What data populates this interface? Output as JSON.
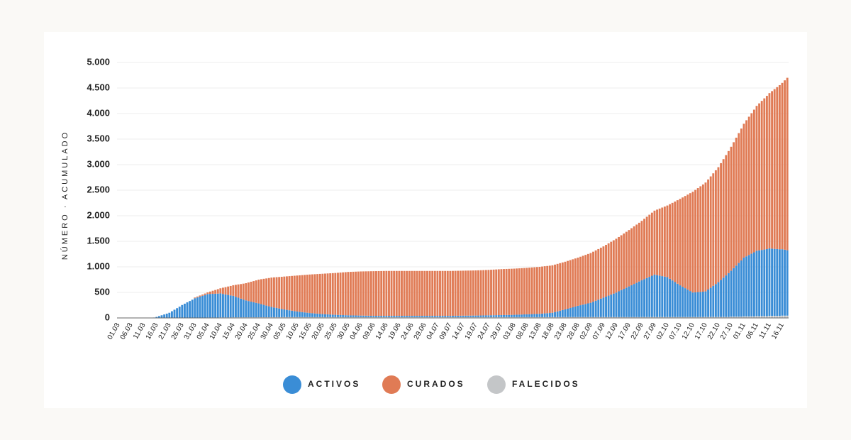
{
  "chart_data": {
    "type": "stacked-bar",
    "y_label": "NÚMERO · ACUMULADO",
    "ylim": [
      0,
      5000
    ],
    "yticks": [
      0,
      500,
      {
        "value": 1000,
        "label": "1.000"
      },
      {
        "value": 1500,
        "label": "1.500"
      },
      {
        "value": 2000,
        "label": "2.000"
      },
      {
        "value": 2500,
        "label": "2.500"
      },
      {
        "value": 3000,
        "label": "3.000"
      },
      {
        "value": 3500,
        "label": "3.500"
      },
      {
        "value": 4000,
        "label": "4.000"
      },
      {
        "value": 4500,
        "label": "4.500"
      },
      {
        "value": 5000,
        "label": "5.000"
      }
    ],
    "grid": true,
    "legend": "bottom",
    "categories": [
      "01.03",
      null,
      null,
      null,
      null,
      "06.03",
      null,
      null,
      null,
      null,
      "11.03",
      null,
      null,
      null,
      null,
      "16.03",
      null,
      null,
      null,
      null,
      "21.03",
      null,
      null,
      null,
      null,
      "26.03",
      null,
      null,
      null,
      null,
      "31.03",
      null,
      null,
      null,
      null,
      "05.04",
      null,
      null,
      null,
      null,
      "10.04",
      null,
      null,
      null,
      null,
      "15.04",
      null,
      null,
      null,
      null,
      "20.04",
      null,
      null,
      null,
      null,
      "25.04",
      null,
      null,
      null,
      null,
      "30.04",
      null,
      null,
      null,
      null,
      "05.05",
      null,
      null,
      null,
      null,
      "10.05",
      null,
      null,
      null,
      null,
      "15.05",
      null,
      null,
      null,
      null,
      "20.05",
      null,
      null,
      null,
      null,
      "25.05",
      null,
      null,
      null,
      null,
      "30.05",
      null,
      null,
      null,
      null,
      "04.06",
      null,
      null,
      null,
      null,
      "09.06",
      null,
      null,
      null,
      null,
      "14.06",
      null,
      null,
      null,
      null,
      "19.06",
      null,
      null,
      null,
      null,
      "24.06",
      null,
      null,
      null,
      null,
      "29.06",
      null,
      null,
      null,
      null,
      "04.07",
      null,
      null,
      null,
      null,
      "09.07",
      null,
      null,
      null,
      null,
      "14.07",
      null,
      null,
      null,
      null,
      "19.07",
      null,
      null,
      null,
      null,
      "24.07",
      null,
      null,
      null,
      null,
      "29.07",
      null,
      null,
      null,
      null,
      "03.08",
      null,
      null,
      null,
      null,
      "08.08",
      null,
      null,
      null,
      null,
      "13.08",
      null,
      null,
      null,
      null,
      "18.08",
      null,
      null,
      null,
      null,
      "23.08",
      null,
      null,
      null,
      null,
      "28.08",
      null,
      null,
      null,
      null,
      "02.09",
      null,
      null,
      null,
      null,
      "07.09",
      null,
      null,
      null,
      null,
      "12.09",
      null,
      null,
      null,
      null,
      "17.09",
      null,
      null,
      null,
      null,
      "22.09",
      null,
      null,
      null,
      null,
      "27.09",
      null,
      null,
      null,
      null,
      "02.10",
      null,
      null,
      null,
      null,
      "07.10",
      null,
      null,
      null,
      null,
      "12.10",
      null,
      null,
      null,
      null,
      "17.10",
      null,
      null,
      null,
      null,
      "22.10",
      null,
      null,
      null,
      null,
      "27.10",
      null,
      null,
      null,
      null,
      "01.11",
      null,
      null,
      null,
      null,
      "06.11",
      null,
      null,
      null,
      null,
      "11.11",
      null,
      null,
      null,
      null,
      "16.11",
      null,
      null
    ],
    "series": [
      {
        "name": "ACTIVOS",
        "color": "#3a8dd6",
        "values": [
          0,
          0,
          0,
          0,
          0,
          0,
          0,
          0,
          0,
          0,
          1,
          2,
          3,
          5,
          8,
          20,
          36,
          52,
          68,
          84,
          100,
          130,
          160,
          190,
          220,
          250,
          276,
          302,
          328,
          354,
          380,
          396,
          412,
          428,
          444,
          460,
          462,
          464,
          466,
          468,
          470,
          460,
          450,
          440,
          430,
          420,
          402,
          384,
          366,
          348,
          330,
          318,
          306,
          294,
          282,
          270,
          256,
          242,
          228,
          214,
          200,
          190,
          180,
          170,
          160,
          150,
          142,
          134,
          126,
          118,
          110,
          104,
          98,
          92,
          86,
          80,
          76,
          72,
          68,
          64,
          60,
          57,
          54,
          51,
          48,
          45,
          43,
          41,
          39,
          37,
          35,
          34,
          33,
          32,
          31,
          30,
          29,
          28,
          27,
          26,
          25,
          25,
          25,
          25,
          25,
          25,
          25,
          25,
          25,
          25,
          25,
          25,
          25,
          25,
          25,
          25,
          25,
          25,
          25,
          25,
          25,
          25,
          25,
          25,
          25,
          25,
          25,
          25,
          25,
          25,
          25,
          26,
          26,
          27,
          27,
          28,
          28,
          29,
          29,
          30,
          30,
          31,
          32,
          33,
          34,
          35,
          36,
          37,
          38,
          39,
          40,
          41,
          42,
          43,
          44,
          45,
          47,
          49,
          51,
          53,
          55,
          57,
          59,
          61,
          63,
          65,
          69,
          73,
          77,
          81,
          85,
          98,
          111,
          124,
          137,
          150,
          164,
          178,
          192,
          206,
          220,
          232,
          244,
          256,
          268,
          280,
          300,
          320,
          340,
          360,
          380,
          400,
          420,
          440,
          460,
          480,
          504,
          528,
          552,
          576,
          600,
          624,
          648,
          672,
          696,
          720,
          742,
          764,
          786,
          808,
          830,
          820,
          810,
          800,
          790,
          780,
          748,
          716,
          684,
          652,
          620,
          592,
          564,
          536,
          508,
          480,
          484,
          488,
          492,
          496,
          500,
          536,
          572,
          608,
          644,
          680,
          724,
          768,
          812,
          856,
          900,
          950,
          1000,
          1050,
          1100,
          1150,
          1176,
          1202,
          1228,
          1254,
          1280,
          1288,
          1296,
          1304,
          1312,
          1320,
          1316,
          1312,
          1308,
          1304,
          1300,
          1290,
          1280
        ]
      },
      {
        "name": "CURADOS",
        "color": "#e07b55",
        "values": [
          0,
          0,
          0,
          0,
          0,
          0,
          0,
          0,
          0,
          0,
          0,
          0,
          0,
          0,
          0,
          0,
          0,
          0,
          0,
          0,
          0,
          0,
          0,
          0,
          0,
          0,
          0,
          0,
          0,
          0,
          15,
          18,
          22,
          25,
          29,
          32,
          46,
          60,
          73,
          87,
          100,
          122,
          143,
          165,
          186,
          208,
          234,
          260,
          285,
          311,
          337,
          363,
          389,
          414,
          440,
          466,
          488,
          510,
          531,
          553,
          575,
          589,
          603,
          616,
          630,
          644,
          656,
          668,
          680,
          692,
          704,
          714,
          724,
          734,
          744,
          754,
          761,
          768,
          775,
          782,
          789,
          795,
          801,
          807,
          813,
          819,
          825,
          831,
          837,
          843,
          849,
          852,
          855,
          858,
          861,
          864,
          866,
          868,
          870,
          872,
          874,
          875,
          876,
          877,
          878,
          879,
          879,
          879,
          879,
          879,
          879,
          879,
          879,
          879,
          879,
          879,
          879,
          879,
          879,
          879,
          879,
          879,
          879,
          879,
          879,
          879,
          879,
          879,
          879,
          879,
          879,
          879,
          880,
          880,
          881,
          881,
          882,
          882,
          883,
          883,
          884,
          885,
          886,
          887,
          888,
          889,
          891,
          893,
          895,
          897,
          899,
          900,
          901,
          902,
          903,
          904,
          905,
          906,
          907,
          908,
          909,
          911,
          913,
          915,
          917,
          919,
          921,
          923,
          924,
          926,
          928,
          929,
          930,
          931,
          932,
          933,
          935,
          937,
          939,
          941,
          943,
          949,
          955,
          961,
          967,
          973,
          979,
          985,
          991,
          997,
          1003,
          1013,
          1023,
          1033,
          1043,
          1053,
          1063,
          1073,
          1083,
          1093,
          1103,
          1115,
          1127,
          1138,
          1150,
          1162,
          1180,
          1198,
          1216,
          1234,
          1252,
          1282,
          1312,
          1342,
          1372,
          1402,
          1460,
          1518,
          1576,
          1634,
          1692,
          1748,
          1804,
          1860,
          1916,
          1972,
          2004,
          2035,
          2067,
          2098,
          2130,
          2154,
          2178,
          2202,
          2226,
          2250,
          2285,
          2320,
          2355,
          2390,
          2425,
          2464,
          2503,
          2542,
          2581,
          2620,
          2663,
          2706,
          2749,
          2792,
          2835,
          2876,
          2917,
          2958,
          2999,
          3040,
          3083,
          3126,
          3169,
          3212,
          3255,
          3315,
          3375
        ]
      },
      {
        "name": "FALECIDOS",
        "color": "#c4c6c8",
        "values": [
          0,
          0,
          0,
          0,
          0,
          0,
          0,
          0,
          0,
          0,
          0,
          0,
          0,
          0,
          0,
          0,
          0,
          0,
          0,
          0,
          1,
          1,
          1,
          1,
          1,
          3,
          3,
          3,
          3,
          3,
          5,
          5,
          5,
          5,
          5,
          8,
          8,
          8,
          8,
          8,
          10,
          10,
          10,
          10,
          10,
          12,
          12,
          12,
          12,
          12,
          13,
          13,
          13,
          13,
          13,
          14,
          14,
          14,
          14,
          14,
          15,
          15,
          15,
          15,
          15,
          16,
          16,
          16,
          16,
          16,
          16,
          16,
          16,
          16,
          16,
          16,
          16,
          16,
          16,
          16,
          16,
          16,
          16,
          16,
          16,
          16,
          16,
          16,
          16,
          16,
          16,
          16,
          16,
          16,
          16,
          16,
          16,
          16,
          16,
          16,
          16,
          16,
          16,
          16,
          16,
          16,
          16,
          16,
          16,
          16,
          16,
          16,
          16,
          16,
          16,
          16,
          16,
          16,
          16,
          16,
          16,
          16,
          16,
          16,
          16,
          16,
          16,
          16,
          16,
          16,
          16,
          16,
          16,
          16,
          16,
          16,
          16,
          16,
          16,
          16,
          16,
          16,
          16,
          16,
          16,
          16,
          16,
          16,
          16,
          16,
          16,
          16,
          16,
          16,
          16,
          16,
          16,
          16,
          16,
          16,
          16,
          16,
          16,
          16,
          16,
          16,
          16,
          16,
          16,
          16,
          17,
          17,
          17,
          17,
          17,
          17,
          17,
          17,
          17,
          17,
          17,
          17,
          17,
          17,
          17,
          17,
          17,
          17,
          17,
          17,
          17,
          17,
          17,
          17,
          17,
          17,
          17,
          17,
          17,
          17,
          17,
          17,
          17,
          17,
          17,
          18,
          18,
          18,
          18,
          18,
          18,
          18,
          18,
          18,
          18,
          18,
          18,
          18,
          18,
          18,
          18,
          18,
          18,
          18,
          18,
          18,
          18,
          18,
          18,
          18,
          20,
          20,
          20,
          20,
          20,
          20,
          20,
          20,
          20,
          20,
          25,
          25,
          25,
          25,
          25,
          30,
          30,
          30,
          30,
          30,
          35,
          35,
          35,
          35,
          35,
          40,
          40,
          40,
          40,
          40,
          45,
          45,
          45
        ]
      }
    ]
  }
}
